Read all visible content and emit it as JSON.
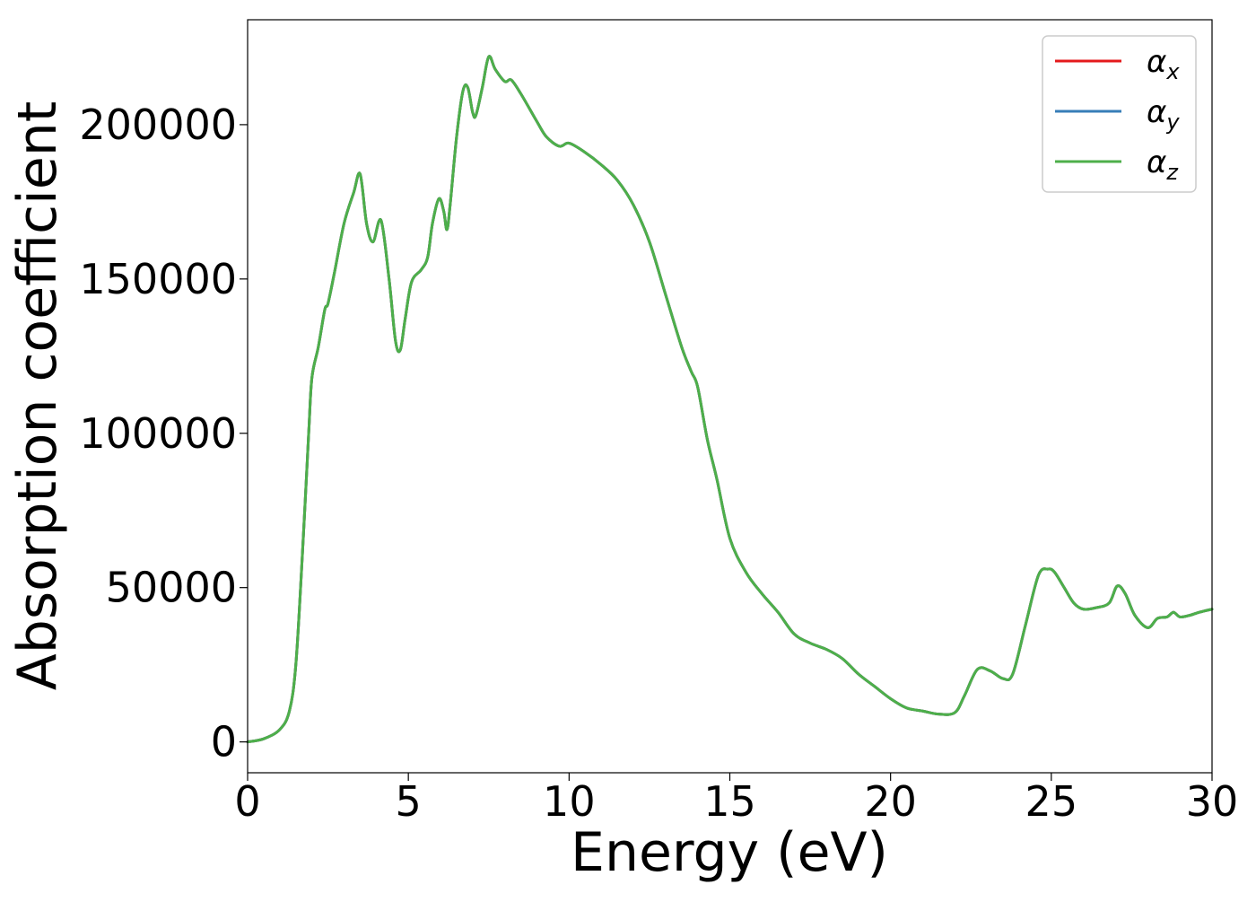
{
  "chart_data": {
    "type": "line",
    "title": "",
    "xlabel": "Energy (eV)",
    "ylabel": "Absorption coefficient",
    "xlim": [
      0,
      30
    ],
    "ylim": [
      -10000,
      234000
    ],
    "xticks": [
      0,
      5,
      10,
      15,
      20,
      25,
      30
    ],
    "xtick_labels": [
      "0",
      "5",
      "10",
      "15",
      "20",
      "25",
      "30"
    ],
    "yticks": [
      0,
      50000,
      100000,
      150000,
      200000
    ],
    "ytick_labels": [
      "0",
      "50000",
      "100000",
      "150000",
      "200000"
    ],
    "grid": false,
    "legend_position": "upper right",
    "x": [
      0,
      0.5,
      1.0,
      1.3,
      1.5,
      1.7,
      1.9,
      2.0,
      2.2,
      2.4,
      2.5,
      2.7,
      3.0,
      3.3,
      3.5,
      3.7,
      3.9,
      4.15,
      4.4,
      4.6,
      4.75,
      4.9,
      5.1,
      5.4,
      5.6,
      5.75,
      5.95,
      6.1,
      6.2,
      6.3,
      6.5,
      6.7,
      6.85,
      7.0,
      7.1,
      7.3,
      7.5,
      7.7,
      8.0,
      8.2,
      8.5,
      9.0,
      9.3,
      9.7,
      10.0,
      10.5,
      11.0,
      11.5,
      12.0,
      12.5,
      13.0,
      13.5,
      13.8,
      14.0,
      14.3,
      14.6,
      15.0,
      15.5,
      16.0,
      16.5,
      17.0,
      17.5,
      18.0,
      18.5,
      19.0,
      19.5,
      20.0,
      20.5,
      21.0,
      21.5,
      22.0,
      22.3,
      22.7,
      23.1,
      23.5,
      23.8,
      24.2,
      24.6,
      24.9,
      25.1,
      25.4,
      25.7,
      26.0,
      26.4,
      26.8,
      27.05,
      27.3,
      27.6,
      28.0,
      28.3,
      28.6,
      28.8,
      29.0,
      29.3,
      29.6,
      30.0
    ],
    "series": [
      {
        "name": "αx",
        "color": "#e41a1c",
        "values": [
          0,
          1000,
          4000,
          10000,
          25000,
          60000,
          100000,
          118000,
          128000,
          140000,
          142000,
          152000,
          168000,
          178000,
          184000,
          168000,
          162000,
          169000,
          150000,
          130000,
          127000,
          137000,
          149000,
          153000,
          157000,
          168000,
          176000,
          172000,
          166000,
          174000,
          196000,
          211000,
          212000,
          204000,
          203000,
          212000,
          222000,
          218000,
          214000,
          214500,
          210000,
          201000,
          196000,
          193000,
          194000,
          191000,
          187000,
          182000,
          174000,
          162000,
          145000,
          128000,
          120000,
          115000,
          98000,
          85000,
          66000,
          55000,
          48000,
          42000,
          35000,
          32000,
          30000,
          27000,
          22000,
          18000,
          14000,
          11000,
          10000,
          9000,
          9500,
          15000,
          23500,
          23000,
          20500,
          22000,
          38000,
          54000,
          56000,
          55000,
          50000,
          45000,
          43000,
          43500,
          45000,
          50500,
          48000,
          41000,
          37000,
          40000,
          40500,
          42000,
          40500,
          41000,
          42000,
          43000
        ]
      },
      {
        "name": "αy",
        "color": "#377eb8",
        "values": [
          0,
          1000,
          4000,
          10000,
          25000,
          60000,
          100000,
          118000,
          128000,
          140000,
          142000,
          152000,
          168000,
          178000,
          184000,
          168000,
          162000,
          169000,
          150000,
          130000,
          127000,
          137000,
          149000,
          153000,
          157000,
          168000,
          176000,
          172000,
          166000,
          174000,
          196000,
          211000,
          212000,
          204000,
          203000,
          212000,
          222000,
          218000,
          214000,
          214500,
          210000,
          201000,
          196000,
          193000,
          194000,
          191000,
          187000,
          182000,
          174000,
          162000,
          145000,
          128000,
          120000,
          115000,
          98000,
          85000,
          66000,
          55000,
          48000,
          42000,
          35000,
          32000,
          30000,
          27000,
          22000,
          18000,
          14000,
          11000,
          10000,
          9000,
          9500,
          15000,
          23500,
          23000,
          20500,
          22000,
          38000,
          54000,
          56000,
          55000,
          50000,
          45000,
          43000,
          43500,
          45000,
          50500,
          48000,
          41000,
          37000,
          40000,
          40500,
          42000,
          40500,
          41000,
          42000,
          43000
        ]
      },
      {
        "name": "αz",
        "color": "#4daf4a",
        "values": [
          0,
          1000,
          4000,
          10000,
          25000,
          60000,
          100000,
          118000,
          128000,
          140000,
          142000,
          152000,
          168000,
          178000,
          184000,
          168000,
          162000,
          169000,
          150000,
          130000,
          127000,
          137000,
          149000,
          153000,
          157000,
          168000,
          176000,
          172000,
          166000,
          174000,
          196000,
          211000,
          212000,
          204000,
          203000,
          212000,
          222000,
          218000,
          214000,
          214500,
          210000,
          201000,
          196000,
          193000,
          194000,
          191000,
          187000,
          182000,
          174000,
          162000,
          145000,
          128000,
          120000,
          115000,
          98000,
          85000,
          66000,
          55000,
          48000,
          42000,
          35000,
          32000,
          30000,
          27000,
          22000,
          18000,
          14000,
          11000,
          10000,
          9000,
          9500,
          15000,
          23500,
          23000,
          20500,
          22000,
          38000,
          54000,
          56000,
          55000,
          50000,
          45000,
          43000,
          43500,
          45000,
          50500,
          48000,
          41000,
          37000,
          40000,
          40500,
          42000,
          40500,
          41000,
          42000,
          43000
        ]
      }
    ],
    "legend": [
      {
        "base": "α",
        "sub": "x"
      },
      {
        "base": "α",
        "sub": "y"
      },
      {
        "base": "α",
        "sub": "z"
      }
    ]
  }
}
